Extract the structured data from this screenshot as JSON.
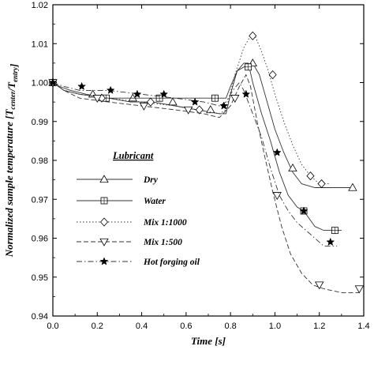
{
  "chart_data": {
    "type": "line",
    "title": "",
    "xlabel": "Time [s]",
    "ylabel": {
      "main": "Normalized sample temperature [T",
      "sub1": "center",
      "mid": "/T",
      "sub2": "entry",
      "end": "]"
    },
    "xlim": [
      0,
      1.4
    ],
    "ylim": [
      0.94,
      1.02
    ],
    "x_ticks": [
      "0.0",
      "0.2",
      "0.4",
      "0.6",
      "0.8",
      "1.0",
      "1.2",
      "1.4"
    ],
    "y_ticks": [
      "0.94",
      "0.95",
      "0.96",
      "0.97",
      "0.98",
      "0.99",
      "1.00",
      "1.01",
      "1.02"
    ],
    "legend": {
      "title": "Lubricant",
      "placement": "center-left"
    },
    "series": [
      {
        "name": "Dry",
        "marker": "triangle-up",
        "line": "solid",
        "points": [
          [
            0.0,
            1.0
          ],
          [
            0.03,
            0.999
          ],
          [
            0.08,
            0.998
          ],
          [
            0.15,
            0.997
          ],
          [
            0.25,
            0.996
          ],
          [
            0.35,
            0.995
          ],
          [
            0.45,
            0.995
          ],
          [
            0.55,
            0.994
          ],
          [
            0.65,
            0.993
          ],
          [
            0.75,
            0.992
          ],
          [
            0.78,
            0.992
          ],
          [
            0.8,
            0.997
          ],
          [
            0.83,
            1.003
          ],
          [
            0.86,
            1.004
          ],
          [
            0.9,
            1.005
          ],
          [
            0.93,
            1.002
          ],
          [
            0.96,
            0.996
          ],
          [
            1.0,
            0.988
          ],
          [
            1.04,
            0.982
          ],
          [
            1.08,
            0.977
          ],
          [
            1.12,
            0.974
          ],
          [
            1.18,
            0.973
          ],
          [
            1.25,
            0.973
          ],
          [
            1.35,
            0.973
          ]
        ],
        "marker_points": [
          [
            0.0,
            1.0
          ],
          [
            0.18,
            0.997
          ],
          [
            0.36,
            0.996
          ],
          [
            0.54,
            0.995
          ],
          [
            0.71,
            0.993
          ],
          [
            0.9,
            1.005
          ],
          [
            1.08,
            0.978
          ],
          [
            1.35,
            0.973
          ]
        ]
      },
      {
        "name": "Water",
        "marker": "square",
        "line": "solid",
        "points": [
          [
            0.0,
            1.0
          ],
          [
            0.05,
            0.998
          ],
          [
            0.12,
            0.997
          ],
          [
            0.25,
            0.996
          ],
          [
            0.4,
            0.996
          ],
          [
            0.55,
            0.996
          ],
          [
            0.68,
            0.996
          ],
          [
            0.75,
            0.996
          ],
          [
            0.78,
            0.996
          ],
          [
            0.8,
            0.999
          ],
          [
            0.83,
            1.003
          ],
          [
            0.86,
            1.005
          ],
          [
            0.88,
            1.005
          ],
          [
            0.9,
            1.0
          ],
          [
            0.94,
            0.992
          ],
          [
            0.98,
            0.985
          ],
          [
            1.02,
            0.977
          ],
          [
            1.06,
            0.971
          ],
          [
            1.1,
            0.968
          ],
          [
            1.13,
            0.967
          ],
          [
            1.18,
            0.963
          ],
          [
            1.22,
            0.962
          ],
          [
            1.3,
            0.962
          ]
        ],
        "marker_points": [
          [
            0.0,
            1.0
          ],
          [
            0.24,
            0.996
          ],
          [
            0.48,
            0.996
          ],
          [
            0.73,
            0.996
          ],
          [
            0.88,
            1.004
          ],
          [
            1.13,
            0.967
          ],
          [
            1.27,
            0.962
          ]
        ]
      },
      {
        "name": "Mix 1:1000",
        "marker": "diamond",
        "line": "dotted",
        "points": [
          [
            0.0,
            1.0
          ],
          [
            0.05,
            0.998
          ],
          [
            0.12,
            0.997
          ],
          [
            0.25,
            0.996
          ],
          [
            0.4,
            0.995
          ],
          [
            0.55,
            0.994
          ],
          [
            0.65,
            0.993
          ],
          [
            0.75,
            0.992
          ],
          [
            0.78,
            0.993
          ],
          [
            0.82,
            1.002
          ],
          [
            0.86,
            1.009
          ],
          [
            0.89,
            1.012
          ],
          [
            0.91,
            1.012
          ],
          [
            0.94,
            1.008
          ],
          [
            0.97,
            1.003
          ],
          [
            1.0,
            0.997
          ],
          [
            1.04,
            0.99
          ],
          [
            1.08,
            0.984
          ],
          [
            1.12,
            0.979
          ],
          [
            1.16,
            0.976
          ],
          [
            1.2,
            0.974
          ],
          [
            1.25,
            0.974
          ]
        ],
        "marker_points": [
          [
            0.0,
            1.0
          ],
          [
            0.22,
            0.996
          ],
          [
            0.44,
            0.995
          ],
          [
            0.66,
            0.993
          ],
          [
            0.9,
            1.012
          ],
          [
            0.99,
            1.002
          ],
          [
            1.16,
            0.976
          ],
          [
            1.21,
            0.974
          ]
        ]
      },
      {
        "name": "Mix 1:500",
        "marker": "triangle-down",
        "line": "dashed",
        "points": [
          [
            0.0,
            1.0
          ],
          [
            0.05,
            0.998
          ],
          [
            0.12,
            0.996
          ],
          [
            0.25,
            0.995
          ],
          [
            0.4,
            0.994
          ],
          [
            0.55,
            0.993
          ],
          [
            0.68,
            0.992
          ],
          [
            0.75,
            0.991
          ],
          [
            0.8,
            0.994
          ],
          [
            0.84,
            0.999
          ],
          [
            0.87,
            1.002
          ],
          [
            0.89,
            0.999
          ],
          [
            0.92,
            0.99
          ],
          [
            0.95,
            0.982
          ],
          [
            0.99,
            0.972
          ],
          [
            1.03,
            0.963
          ],
          [
            1.07,
            0.956
          ],
          [
            1.12,
            0.951
          ],
          [
            1.17,
            0.948
          ],
          [
            1.22,
            0.947
          ],
          [
            1.3,
            0.946
          ],
          [
            1.38,
            0.946
          ]
        ],
        "marker_points": [
          [
            0.0,
            1.0
          ],
          [
            0.2,
            0.996
          ],
          [
            0.41,
            0.994
          ],
          [
            0.61,
            0.993
          ],
          [
            0.82,
            0.996
          ],
          [
            1.01,
            0.971
          ],
          [
            1.2,
            0.948
          ],
          [
            1.38,
            0.947
          ]
        ]
      },
      {
        "name": "Hot forging oil",
        "marker": "star",
        "line": "dash-dot",
        "points": [
          [
            0.0,
            1.0
          ],
          [
            0.05,
            0.999
          ],
          [
            0.12,
            0.998
          ],
          [
            0.25,
            0.998
          ],
          [
            0.4,
            0.997
          ],
          [
            0.55,
            0.996
          ],
          [
            0.68,
            0.995
          ],
          [
            0.75,
            0.994
          ],
          [
            0.78,
            0.995
          ],
          [
            0.81,
            0.998
          ],
          [
            0.84,
            1.0
          ],
          [
            0.86,
            0.998
          ],
          [
            0.9,
            0.992
          ],
          [
            0.94,
            0.986
          ],
          [
            0.98,
            0.978
          ],
          [
            1.02,
            0.971
          ],
          [
            1.06,
            0.967
          ],
          [
            1.1,
            0.964
          ],
          [
            1.14,
            0.962
          ],
          [
            1.18,
            0.96
          ],
          [
            1.22,
            0.958
          ],
          [
            1.28,
            0.958
          ]
        ],
        "marker_points": [
          [
            0.0,
            1.0
          ],
          [
            0.13,
            0.999
          ],
          [
            0.26,
            0.998
          ],
          [
            0.38,
            0.997
          ],
          [
            0.5,
            0.997
          ],
          [
            0.64,
            0.995
          ],
          [
            0.77,
            0.994
          ],
          [
            0.87,
            0.997
          ],
          [
            1.01,
            0.982
          ],
          [
            1.13,
            0.967
          ],
          [
            1.25,
            0.959
          ]
        ]
      }
    ]
  }
}
